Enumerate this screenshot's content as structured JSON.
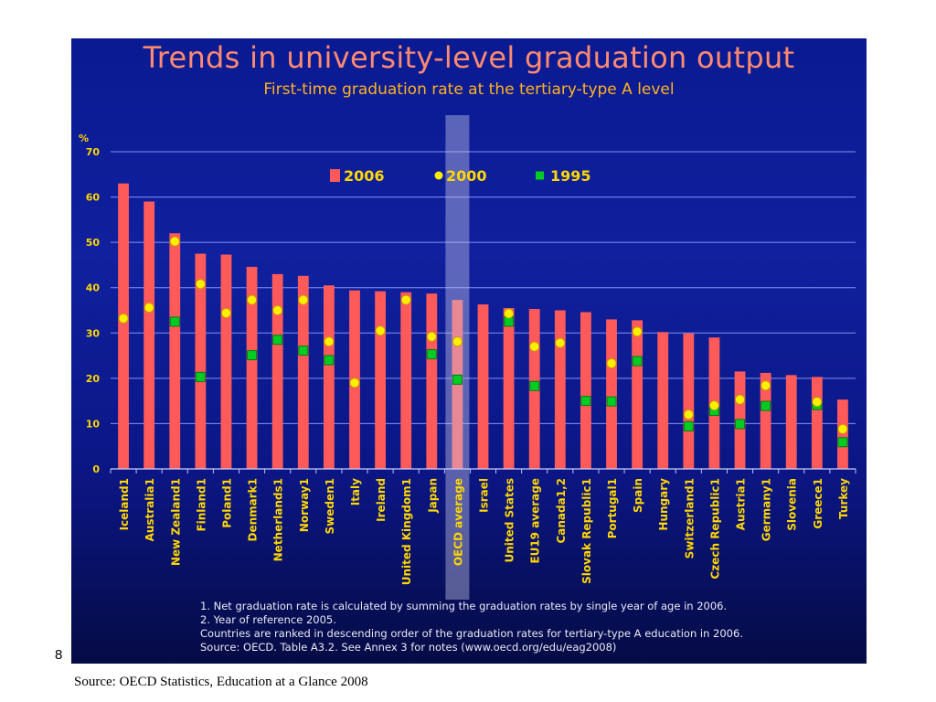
{
  "slide": {
    "number": "8",
    "footer_source": "Source: OECD Statistics, Education at a Glance 2008",
    "notes": [
      "1.   Net graduation rate is calculated by summing the graduation rates by single year of age in 2006.",
      "2.   Year of reference 2005.",
      "Countries are ranked in descending order of the graduation rates for tertiary-type A education in 2006.",
      "Source: OECD. Table A3.2. See Annex 3 for notes (www.oecd.org/edu/eag2008)"
    ]
  },
  "colors": {
    "bar_2006": "#ff5a5a",
    "marker_2000": "#ffee00",
    "marker_1995": "#00cc22",
    "gridline": "#8ea0ff",
    "axis_text": "#ffd700",
    "highlight": "#c8c8e6"
  },
  "chart_data": {
    "type": "bar",
    "title": "Trends in university-level graduation output",
    "subtitle": "First-time graduation rate at the tertiary-type A level",
    "ylabel": "%",
    "ylim": [
      0,
      70
    ],
    "yticks": [
      0,
      10,
      20,
      30,
      40,
      50,
      60,
      70
    ],
    "grid": true,
    "legend_position": "top",
    "highlight_category": "OECD average",
    "categories": [
      "Iceland1",
      "Australia1",
      "New Zealand1",
      "Finland1",
      "Poland1",
      "Denmark1",
      "Netherlands1",
      "Norway1",
      "Sweden1",
      "Italy",
      "Ireland",
      "United Kingdom1",
      "Japan",
      "OECD average",
      "Israel",
      "United States",
      "EU19 average",
      "Canada1,2",
      "Slovak Republic1",
      "Portugal1",
      "Spain",
      "Hungary",
      "Switzerland1",
      "Czech Republic1",
      "Austria1",
      "Germany1",
      "Slovenia",
      "Greece1",
      "Turkey"
    ],
    "series": [
      {
        "name": "2006",
        "kind": "bar",
        "values": [
          63,
          59,
          52,
          47.5,
          47.3,
          44.6,
          43,
          42.6,
          40.5,
          39.4,
          39.2,
          39,
          38.7,
          37.3,
          36.3,
          35.5,
          35.3,
          35,
          34.6,
          33,
          32.8,
          30.2,
          29.9,
          29,
          21.5,
          21.2,
          20.7,
          20.3,
          15.3
        ]
      },
      {
        "name": "2000",
        "kind": "circle",
        "values": [
          33.2,
          35.6,
          50.2,
          40.8,
          34.4,
          37.3,
          35,
          37.3,
          28.1,
          19,
          30.5,
          37.3,
          29.2,
          28.1,
          null,
          34.3,
          27,
          27.8,
          null,
          23.3,
          30.3,
          null,
          12,
          14,
          15.3,
          18.4,
          null,
          14.8,
          8.8
        ]
      },
      {
        "name": "1995",
        "kind": "square",
        "values": [
          null,
          null,
          32.5,
          20.3,
          null,
          25.1,
          28.5,
          26.1,
          24,
          null,
          null,
          null,
          25.3,
          19.7,
          null,
          32.5,
          18.3,
          null,
          15,
          14.9,
          23.8,
          null,
          9.4,
          12.8,
          9.9,
          13.9,
          null,
          14.1,
          5.9
        ]
      }
    ]
  }
}
